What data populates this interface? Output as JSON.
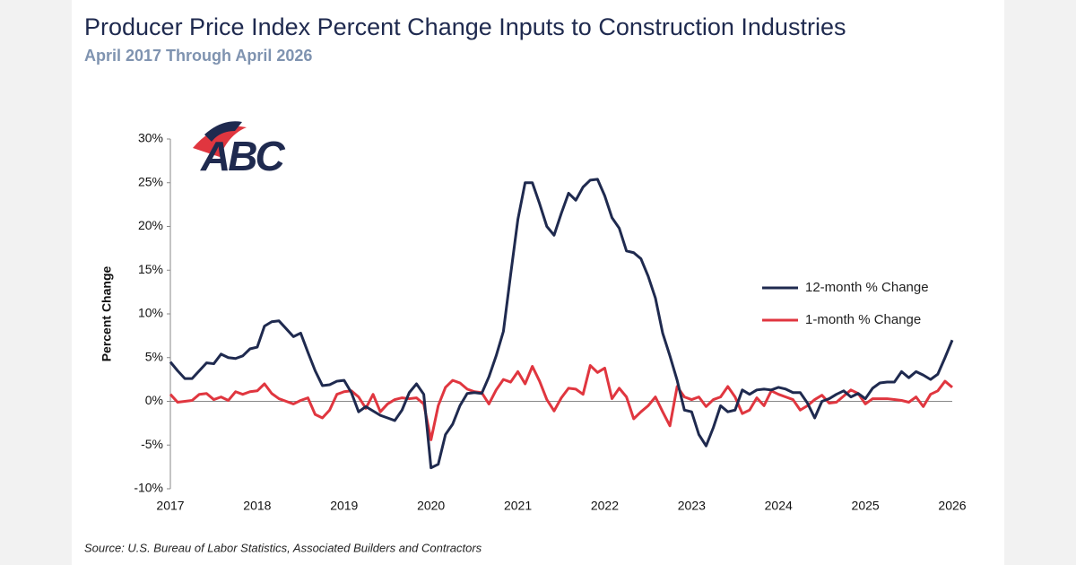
{
  "chart_data": {
    "type": "line",
    "title": "Producer Price Index Percent Change Inputs to Construction Industries",
    "subtitle": "April 2017 Through April 2026",
    "y_label": "Percent Change",
    "source": "Source: U.S. Bureau of Labor Statistics, Associated Builders and Contractors",
    "logo_text": "ABC",
    "categories": [
      "2017",
      null,
      null,
      null,
      null,
      null,
      null,
      null,
      null,
      null,
      null,
      null,
      "2018",
      null,
      null,
      null,
      null,
      null,
      null,
      null,
      null,
      null,
      null,
      null,
      "2019",
      null,
      null,
      null,
      null,
      null,
      null,
      null,
      null,
      null,
      null,
      null,
      "2020",
      null,
      null,
      null,
      null,
      null,
      null,
      null,
      null,
      null,
      null,
      null,
      "2021",
      null,
      null,
      null,
      null,
      null,
      null,
      null,
      null,
      null,
      null,
      null,
      "2022",
      null,
      null,
      null,
      null,
      null,
      null,
      null,
      null,
      null,
      null,
      null,
      "2023",
      null,
      null,
      null,
      null,
      null,
      null,
      null,
      null,
      null,
      null,
      null,
      "2024",
      null,
      null,
      null,
      null,
      null,
      null,
      null,
      null,
      null,
      null,
      null,
      "2025",
      null,
      null,
      null,
      null,
      null,
      null,
      null,
      null,
      null,
      null,
      null,
      "2026"
    ],
    "series": [
      {
        "name": "12-month % Change",
        "color": "#1f2a4f",
        "values": [
          4.5,
          3.5,
          2.6,
          2.6,
          3.5,
          4.4,
          4.3,
          5.4,
          5.0,
          4.9,
          5.2,
          6.0,
          6.2,
          8.6,
          9.1,
          9.2,
          8.3,
          7.4,
          7.8,
          5.6,
          3.5,
          1.8,
          1.9,
          2.3,
          2.4,
          1.0,
          -1.2,
          -0.6,
          -1.1,
          -1.6,
          -1.9,
          -2.2,
          -1.0,
          1.0,
          2.0,
          0.8,
          -7.6,
          -7.2,
          -3.8,
          -2.6,
          -0.5,
          0.9,
          1.0,
          0.9,
          2.8,
          5.2,
          8.0,
          14.5,
          20.8,
          25.0,
          25.0,
          22.6,
          20.0,
          19.0,
          21.5,
          23.8,
          23.0,
          24.5,
          25.3,
          25.4,
          23.5,
          21.0,
          19.8,
          17.2,
          17.0,
          16.3,
          14.3,
          11.8,
          7.8,
          5.2,
          2.4,
          -1.0,
          -1.2,
          -3.8,
          -5.1,
          -3.0,
          -0.5,
          -1.2,
          -1.0,
          1.3,
          0.8,
          1.3,
          1.4,
          1.3,
          1.6,
          1.4,
          1.0,
          1.0,
          -0.2,
          -1.9,
          0.0,
          0.3,
          0.8,
          1.2,
          0.5,
          0.9,
          0.3,
          1.5,
          2.1,
          2.2,
          2.2,
          3.4,
          2.7,
          3.4,
          3.0,
          2.5,
          3.1,
          5.0,
          7.0
        ]
      },
      {
        "name": "1-month % Change",
        "color": "#e0363f",
        "values": [
          0.8,
          -0.1,
          0.0,
          0.1,
          0.8,
          0.9,
          0.2,
          0.5,
          0.1,
          1.1,
          0.8,
          1.1,
          1.2,
          2.0,
          0.9,
          0.3,
          0.0,
          -0.3,
          0.1,
          0.4,
          -1.5,
          -1.9,
          -1.0,
          0.8,
          1.1,
          1.2,
          0.5,
          -0.8,
          0.8,
          -1.2,
          -0.3,
          0.2,
          0.4,
          0.3,
          0.4,
          -0.3,
          -4.4,
          -0.5,
          1.6,
          2.4,
          2.1,
          1.4,
          1.1,
          1.0,
          -0.3,
          1.3,
          2.5,
          2.2,
          3.4,
          2.0,
          4.0,
          2.3,
          0.2,
          -1.1,
          0.4,
          1.5,
          1.4,
          0.8,
          4.1,
          3.3,
          3.8,
          0.3,
          1.5,
          0.5,
          -2.0,
          -1.2,
          -0.5,
          0.5,
          -1.2,
          -2.8,
          1.7,
          0.5,
          0.2,
          0.5,
          -0.6,
          0.2,
          0.5,
          1.7,
          0.5,
          -1.4,
          -1.0,
          0.4,
          -0.5,
          1.2,
          0.8,
          0.5,
          0.2,
          -1.0,
          -0.5,
          0.2,
          0.7,
          -0.2,
          -0.1,
          0.6,
          1.3,
          0.9,
          -0.3,
          0.3,
          0.3,
          0.3,
          0.2,
          0.1,
          -0.1,
          0.5,
          -0.6,
          0.8,
          1.2,
          2.3,
          1.6
        ]
      }
    ],
    "ylim": [
      -10,
      30
    ],
    "yticks": [
      {
        "value": -10,
        "label": "-10%"
      },
      {
        "value": -5,
        "label": "-5%"
      },
      {
        "value": 0,
        "label": "0%"
      },
      {
        "value": 5,
        "label": "5%"
      },
      {
        "value": 10,
        "label": "10%"
      },
      {
        "value": 15,
        "label": "15%"
      },
      {
        "value": 20,
        "label": "20%"
      },
      {
        "value": 25,
        "label": "25%"
      },
      {
        "value": 30,
        "label": "30%"
      }
    ],
    "grid": false,
    "legend": "right"
  }
}
